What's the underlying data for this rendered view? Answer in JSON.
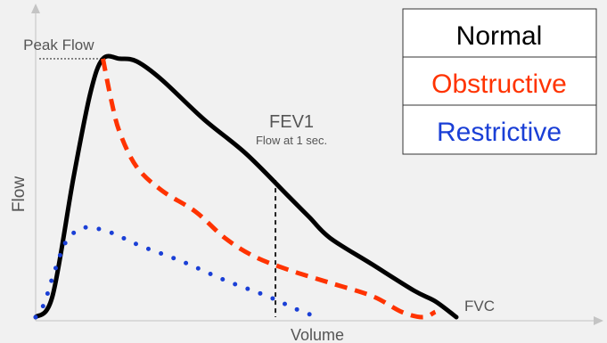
{
  "chart_data": {
    "type": "line",
    "title": "",
    "xlabel": "Volume",
    "ylabel": "Flow",
    "xlim": [
      0,
      100
    ],
    "ylim": [
      0,
      100
    ],
    "grid": false,
    "legend_position": "top-right",
    "series": [
      {
        "name": "Normal",
        "color": "#000000",
        "style": "solid",
        "x": [
          0,
          4,
          9,
          13,
          16,
          20,
          24,
          30,
          40,
          50,
          60,
          65,
          70,
          80,
          90,
          95,
          100
        ],
        "y": [
          0,
          8,
          53,
          85,
          98,
          98,
          97,
          90,
          75,
          62,
          46,
          38,
          30,
          20,
          10,
          6,
          0
        ]
      },
      {
        "name": "Obstructive",
        "color": "#ff3300",
        "style": "dashed",
        "x": [
          16,
          18,
          20,
          24,
          30,
          38,
          45,
          52,
          60,
          70,
          80,
          87,
          92,
          95
        ],
        "y": [
          98,
          82,
          70,
          57,
          48,
          40,
          30,
          23,
          18,
          13,
          8,
          2,
          0,
          2
        ]
      },
      {
        "name": "Restrictive",
        "color": "#1a3fd6",
        "style": "dotted",
        "x": [
          0,
          2,
          4,
          7,
          10,
          13,
          18,
          25,
          35,
          45,
          55,
          62,
          67
        ],
        "y": [
          0,
          5,
          15,
          28,
          33,
          34,
          32,
          27,
          21,
          14,
          8,
          3,
          0
        ]
      }
    ],
    "annotations": {
      "peak_flow": {
        "label": "Peak Flow",
        "x": 16,
        "y": 98
      },
      "fev1": {
        "label": "FEV1",
        "sublabel": "Flow at 1 sec.",
        "x": 57,
        "y": 52
      },
      "fvc": {
        "label": "FVC",
        "x": 100,
        "y": 0
      }
    }
  }
}
